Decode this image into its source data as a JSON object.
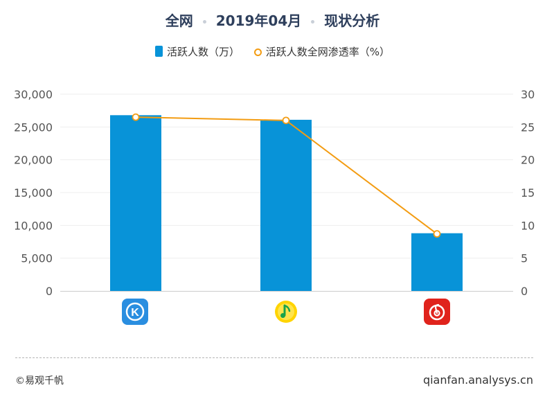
{
  "title": {
    "part1": "全网",
    "part2": "2019年04月",
    "part3": "现状分析"
  },
  "legend": {
    "bar_label": "活跃人数（万）",
    "line_label": "活跃人数全网渗透率（%）"
  },
  "colors": {
    "bar": "#0893d8",
    "line": "#f39c12",
    "title": "#2e3f5c"
  },
  "icons": [
    "kugou-music-icon",
    "qq-music-icon",
    "netease-cloud-music-icon"
  ],
  "footer": {
    "left": "©易观千帆",
    "right": "qianfan.analysys.cn"
  },
  "chart_data": {
    "type": "bar",
    "categories": [
      "",
      "",
      ""
    ],
    "series": [
      {
        "name": "活跃人数（万）",
        "type": "bar",
        "axis": "left",
        "values": [
          26800,
          26100,
          8800
        ]
      },
      {
        "name": "活跃人数全网渗透率（%）",
        "type": "line",
        "axis": "right",
        "values": [
          26.5,
          26.0,
          8.7
        ]
      }
    ],
    "y_left": {
      "min": 0,
      "max": 30000,
      "ticks": [
        "0",
        "5,000",
        "10,000",
        "15,000",
        "20,000",
        "25,000",
        "30,000"
      ]
    },
    "y_right": {
      "min": 0,
      "max": 30,
      "ticks": [
        "0",
        "5",
        "10",
        "15",
        "20",
        "25",
        "30"
      ]
    },
    "grid": true,
    "legend_position": "top-center"
  }
}
